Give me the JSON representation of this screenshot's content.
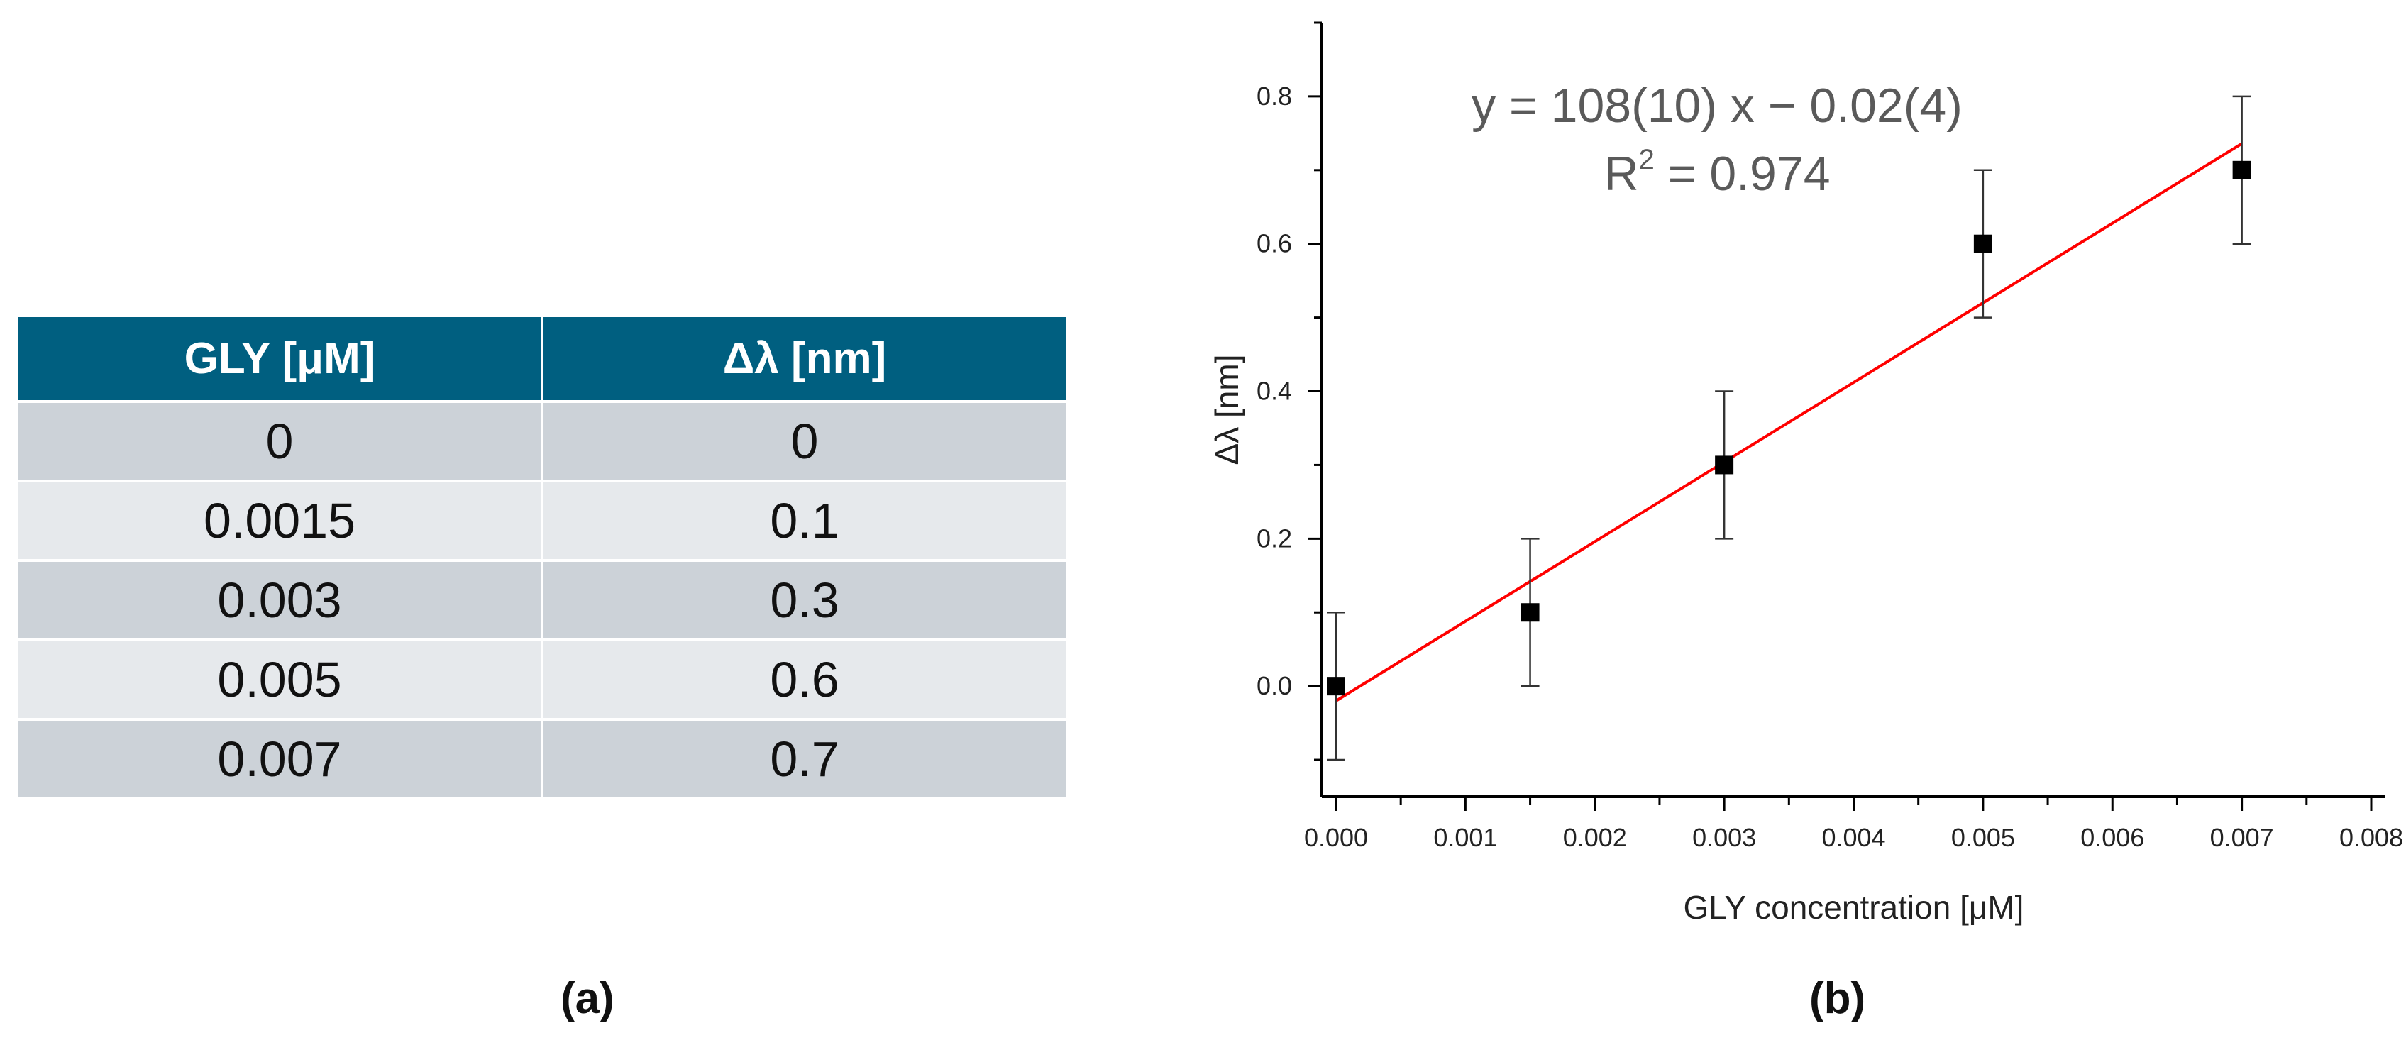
{
  "table": {
    "headers": [
      "GLY [μM]",
      "Δλ [nm]"
    ],
    "rows": [
      [
        "0",
        "0"
      ],
      [
        "0.0015",
        "0.1"
      ],
      [
        "0.003",
        "0.3"
      ],
      [
        "0.005",
        "0.6"
      ],
      [
        "0.007",
        "0.7"
      ]
    ]
  },
  "labels": {
    "a": "(a)",
    "b": "(b)"
  },
  "chart_data": {
    "type": "scatter",
    "xlabel": "GLY concentration [μM]",
    "ylabel": "Δλ [nm]",
    "xlim": [
      0.0,
      0.008
    ],
    "ylim": [
      -0.15,
      0.9
    ],
    "xticks": [
      "0.000",
      "0.001",
      "0.002",
      "0.003",
      "0.004",
      "0.005",
      "0.006",
      "0.007",
      "0.008"
    ],
    "xtick_values": [
      0.0,
      0.001,
      0.002,
      0.003,
      0.004,
      0.005,
      0.006,
      0.007,
      0.008
    ],
    "yticks": [
      "0.0",
      "0.2",
      "0.4",
      "0.6",
      "0.8"
    ],
    "ytick_values": [
      0.0,
      0.2,
      0.4,
      0.6,
      0.8
    ],
    "points": [
      {
        "x": 0.0,
        "y": 0.0,
        "err": 0.1
      },
      {
        "x": 0.0015,
        "y": 0.1,
        "err": 0.1
      },
      {
        "x": 0.003,
        "y": 0.3,
        "err": 0.1
      },
      {
        "x": 0.005,
        "y": 0.6,
        "err": 0.1
      },
      {
        "x": 0.007,
        "y": 0.7,
        "err": 0.1
      }
    ],
    "fit": {
      "slope": 108,
      "intercept": -0.02,
      "x_range": [
        0.0,
        0.007
      ],
      "color": "#ff0000"
    },
    "annotation": {
      "equation": "y = 108(10) x − 0.02(4)",
      "r2_prefix": "R",
      "r2_sup": "2",
      "r2_value": " = 0.974"
    },
    "marker_color": "#000000",
    "grid": false
  }
}
